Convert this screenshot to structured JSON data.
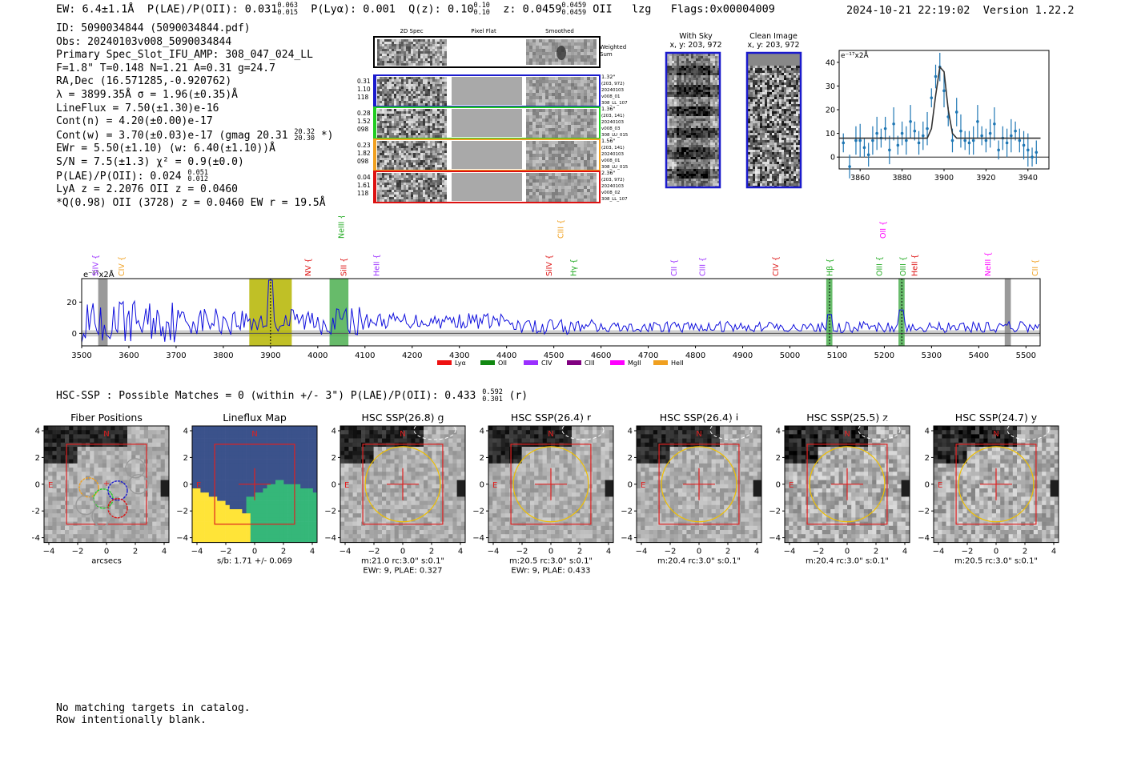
{
  "header": {
    "ew": "EW: 6.4±1.1Å",
    "plae": "P(LAE)/P(OII): 0.031",
    "plae_sup": "0.063",
    "plae_sub": "0.015",
    "plya": "P(Lyα): 0.001",
    "qz": "Q(z): 0.10",
    "qz_sup": "0.10",
    "qz_sub": "0.10",
    "z": "z: 0.0459",
    "z_sup": "0.0459",
    "z_sub": "0.0459",
    "line": "OII",
    "tag": "lzg",
    "flags": "Flags:0x00004009",
    "datetime": "2024-10-21 22:19:02",
    "version": "Version 1.22.2"
  },
  "info": {
    "id": "ID: 5090034844 (5090034844.pdf)",
    "obs": "Obs: 20240103v008_5090034844",
    "slot": "Primary Spec_Slot_IFU_AMP: 308_047_024_LL",
    "params": "F=1.8\"  T=0.148  N=1.21  A=0.31  g=24.7",
    "radec": "RA,Dec (16.571285,-0.920762)",
    "lambda": "λ = 3899.35Å  σ = 1.96(±0.35)Å",
    "lineflux": "LineFlux = 7.50(±1.30)e-16",
    "contn": "Cont(n) = 4.20(±0.00)e-17",
    "contw": "Cont(w) = 3.70(±0.03)e-17 (gmag 20.31",
    "contw_sup": "20.32",
    "contw_sub": "20.30",
    "contw_end": "*)",
    "ewr": "EWr = 5.50(±1.10) (w: 6.40(±1.10))Å",
    "sn": "S/N = 7.5(±1.3)  χ² = 0.9(±0.0)",
    "plae": "P(LAE)/P(OII): 0.024",
    "plae_sup": "0.051",
    "plae_sub": "0.012",
    "lya": "LyA z = 2.2076  OII z = 0.0460",
    "q": "*Q(0.98) OII (3728) z = 0.0460  EW r = 19.5Å"
  },
  "cutouts": {
    "col_labels": [
      "2D Spec",
      "Pixel Flat",
      "Smoothed"
    ],
    "weighted_label": "Weighted\nSum",
    "rows": [
      {
        "left": [
          "0.31",
          "1.10",
          "118"
        ],
        "right": [
          "1.32\"",
          "(203, 972)",
          "20240103",
          "v008_01",
          "308_LL_107"
        ],
        "color": "#1a1acc"
      },
      {
        "left": [
          "0.28",
          "1.52",
          "098"
        ],
        "right": [
          "1.36\"",
          "(203, 141)",
          "20240103",
          "v008_03",
          "308_LU_015"
        ],
        "color": "#22cc22"
      },
      {
        "left": [
          "0.23",
          "1.82",
          "098"
        ],
        "right": [
          "1.56\"",
          "(203, 141)",
          "20240103",
          "v008_01",
          "308_LU_015"
        ],
        "color": "#f0a020"
      },
      {
        "left": [
          "0.04",
          "1.61",
          "118"
        ],
        "right": [
          "2.36\"",
          "(203, 972)",
          "20240103",
          "v008_02",
          "308_LL_107"
        ],
        "color": "#dd1111"
      }
    ],
    "with_sky": "With Sky",
    "with_sky_xy": "x, y: 203, 972",
    "clean": "Clean Image",
    "clean_xy": "x, y: 203, 972"
  },
  "zoom_chart": {
    "type": "scatter",
    "unit_label": "e⁻¹⁷x2Å",
    "xlim": [
      3850,
      3950
    ],
    "ylim": [
      -5,
      45
    ],
    "xticks": [
      "3860",
      "3880",
      "3900",
      "3920",
      "3940"
    ],
    "yticks": [
      "0",
      "10",
      "20",
      "30",
      "40"
    ],
    "points_x": [
      3852,
      3855,
      3858,
      3860,
      3862,
      3864,
      3866,
      3868,
      3870,
      3872,
      3874,
      3876,
      3878,
      3880,
      3882,
      3884,
      3886,
      3888,
      3890,
      3892,
      3894,
      3896,
      3898,
      3900,
      3902,
      3904,
      3906,
      3908,
      3910,
      3912,
      3914,
      3916,
      3918,
      3920,
      3922,
      3924,
      3926,
      3928,
      3930,
      3932,
      3934,
      3936,
      3938,
      3940,
      3942,
      3944
    ],
    "points_y": [
      6,
      -4,
      7,
      7,
      4,
      1,
      7,
      10,
      8,
      12,
      3,
      14,
      5,
      10,
      7,
      15,
      11,
      6,
      9,
      12,
      25,
      34,
      38,
      28,
      17,
      7,
      19,
      11,
      7,
      6,
      7,
      15,
      9,
      7,
      10,
      14,
      3,
      8,
      6,
      9,
      11,
      7,
      5,
      3,
      0,
      2
    ],
    "model_x": [
      3850,
      3892,
      3894,
      3896,
      3898,
      3900,
      3902,
      3904,
      3906,
      3946
    ],
    "model_y": [
      8,
      8,
      12,
      26,
      38,
      36,
      20,
      10,
      8,
      8
    ]
  },
  "spectrum": {
    "type": "line",
    "unit_label": "e⁻¹⁷x2Å",
    "xlim": [
      3500,
      5530
    ],
    "ylim": [
      -8,
      35
    ],
    "xticks": [
      "3500",
      "3600",
      "3700",
      "3800",
      "3900",
      "4000",
      "4100",
      "4200",
      "4300",
      "4400",
      "4500",
      "4600",
      "4700",
      "4800",
      "4900",
      "5000",
      "5100",
      "5200",
      "5300",
      "5400",
      "5500"
    ],
    "yticks": [
      "0",
      "20"
    ],
    "lines": [
      {
        "label": "SiIV",
        "wave": 3530,
        "color": "#9b30ff",
        "level": 1
      },
      {
        "label": "CIV",
        "wave": 3585,
        "color": "#f0a020",
        "level": 1
      },
      {
        "label": "NV",
        "wave": 3980,
        "color": "#dd1111",
        "level": 1
      },
      {
        "label": "NeIII",
        "wave": 4050,
        "color": "#22aa22",
        "level": 0
      },
      {
        "label": "SiII",
        "wave": 4055,
        "color": "#dd1111",
        "level": 1
      },
      {
        "label": "HeII",
        "wave": 4125,
        "color": "#9b30ff",
        "level": 1
      },
      {
        "label": "CIII",
        "wave": 4515,
        "color": "#f0a020",
        "level": 0
      },
      {
        "label": "SiIV",
        "wave": 4490,
        "color": "#dd1111",
        "level": 1
      },
      {
        "label": "Hγ",
        "wave": 4542,
        "color": "#22aa22",
        "level": 1
      },
      {
        "label": "CII",
        "wave": 4755,
        "color": "#9b30ff",
        "level": 1
      },
      {
        "label": "CIII",
        "wave": 4815,
        "color": "#9b30ff",
        "level": 1
      },
      {
        "label": "CIV",
        "wave": 4970,
        "color": "#dd1111",
        "level": 1
      },
      {
        "label": "Hβ",
        "wave": 5085,
        "color": "#22aa22",
        "level": 1
      },
      {
        "label": "OIII",
        "wave": 5190,
        "color": "#22aa22",
        "level": 1
      },
      {
        "label": "OII",
        "wave": 5198,
        "color": "#ff00ff",
        "level": 0
      },
      {
        "label": "OIII",
        "wave": 5240,
        "color": "#22aa22",
        "level": 1
      },
      {
        "label": "HeII",
        "wave": 5265,
        "color": "#dd1111",
        "level": 1
      },
      {
        "label": "NeIII",
        "wave": 5420,
        "color": "#ff00ff",
        "level": 1
      },
      {
        "label": "CII",
        "wave": 5520,
        "color": "#f0a020",
        "level": 1
      }
    ],
    "legend": [
      {
        "label": "Lyα",
        "color": "#ee1111"
      },
      {
        "label": "OII",
        "color": "#118811"
      },
      {
        "label": "CIV",
        "color": "#9b30ff"
      },
      {
        "label": "CIII",
        "color": "#800080"
      },
      {
        "label": "MgII",
        "color": "#ff00ff"
      },
      {
        "label": "HeII",
        "color": "#f0a020"
      }
    ],
    "bands": [
      {
        "from": 3535,
        "to": 3555,
        "color": "#888888"
      },
      {
        "from": 3855,
        "to": 3945,
        "color": "#b5b500"
      },
      {
        "from": 4025,
        "to": 4065,
        "color": "#4caf50"
      },
      {
        "from": 5077,
        "to": 5090,
        "color": "#4caf50"
      },
      {
        "from": 5230,
        "to": 5243,
        "color": "#4caf50"
      },
      {
        "from": 5455,
        "to": 5468,
        "color": "#888888"
      }
    ]
  },
  "hsc": {
    "title": "HSC-SSP : Possible Matches = 0 (within +/- 3\")  P(LAE)/P(OII): 0.433",
    "sup": "0.592",
    "sub": "0.301",
    "band": "(r)",
    "panels": [
      {
        "title": "Fiber Positions",
        "caption": "arcsecs",
        "caption2": ""
      },
      {
        "title": "Lineflux Map",
        "caption": "s/b: 1.71 +/- 0.069",
        "caption2": ""
      },
      {
        "title": "HSC SSP(26.8) g",
        "caption": "m:21.0 rc:3.0\"  s:0.1\"",
        "caption2": "EWr: 9, PLAE: 0.327"
      },
      {
        "title": "HSC SSP(26.4) r",
        "caption": "m:20.5 rc:3.0\"  s:0.1\"",
        "caption2": "EWr: 9, PLAE: 0.433"
      },
      {
        "title": "HSC SSP(26.4) i",
        "caption": "m:20.4 rc:3.0\"  s:0.1\"",
        "caption2": ""
      },
      {
        "title": "HSC SSP(25.5) z",
        "caption": "m:20.4 rc:3.0\"  s:0.1\"",
        "caption2": ""
      },
      {
        "title": "HSC SSP(24.7) y",
        "caption": "m:20.5 rc:3.0\"  s:0.1\"",
        "caption2": ""
      }
    ],
    "ticks": [
      "−4",
      "−2",
      "0",
      "2",
      "4"
    ],
    "n_label": "N",
    "e_label": "E"
  },
  "footer": {
    "line1": "No matching targets in catalog.",
    "line2": "Row intentionally blank."
  }
}
